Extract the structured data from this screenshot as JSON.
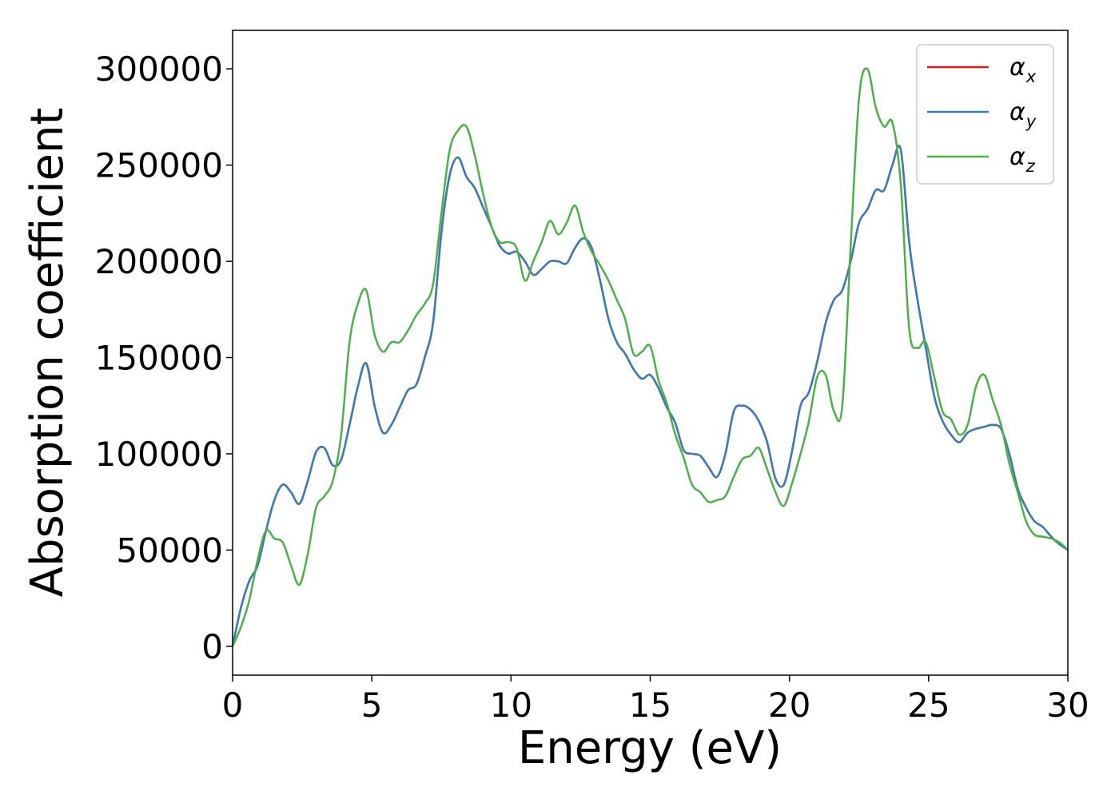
{
  "chart_data": {
    "type": "line",
    "xlabel": "Energy (eV)",
    "ylabel": "Absorption coefficient",
    "xlim": [
      0,
      30
    ],
    "ylim": [
      -15000,
      320000
    ],
    "xticks": [
      0,
      5,
      10,
      15,
      20,
      25,
      30
    ],
    "yticks": [
      0,
      50000,
      100000,
      150000,
      200000,
      250000,
      300000
    ],
    "grid": false,
    "legend_position": "top-right",
    "series": [
      {
        "name": "α_x",
        "legend_base": "α",
        "legend_sub": "x",
        "color": "#e41a1c",
        "x": [
          0,
          0.3,
          0.6,
          0.9,
          1.2,
          1.5,
          1.8,
          2.1,
          2.4,
          2.7,
          3.0,
          3.3,
          3.6,
          3.9,
          4.2,
          4.5,
          4.8,
          5.1,
          5.4,
          5.7,
          6.0,
          6.3,
          6.6,
          6.9,
          7.2,
          7.5,
          7.8,
          8.1,
          8.4,
          8.7,
          9.0,
          9.3,
          9.6,
          9.9,
          10.2,
          10.5,
          10.8,
          11.1,
          11.4,
          11.7,
          12.0,
          12.3,
          12.6,
          12.9,
          13.2,
          13.5,
          13.8,
          14.1,
          14.4,
          14.7,
          15.0,
          15.3,
          15.6,
          15.9,
          16.2,
          16.5,
          16.8,
          17.1,
          17.4,
          17.7,
          18.0,
          18.3,
          18.6,
          18.9,
          19.2,
          19.5,
          19.8,
          20.1,
          20.4,
          20.7,
          21.0,
          21.3,
          21.6,
          21.9,
          22.2,
          22.5,
          22.8,
          23.1,
          23.4,
          23.7,
          24.0,
          24.3,
          24.6,
          24.9,
          25.2,
          25.5,
          25.8,
          26.1,
          26.4,
          26.7,
          27.0,
          27.3,
          27.6,
          27.9,
          28.2,
          28.5,
          28.8,
          29.1,
          29.4,
          29.7,
          30.0
        ],
        "y": [
          0,
          20000,
          34000,
          42000,
          60000,
          76000,
          84000,
          80000,
          74000,
          86000,
          101000,
          103000,
          94000,
          97000,
          115000,
          135000,
          147000,
          125000,
          111000,
          115000,
          124000,
          133000,
          136000,
          150000,
          168000,
          215000,
          245000,
          254000,
          244000,
          238000,
          228000,
          218000,
          208000,
          204000,
          205000,
          200000,
          193000,
          196000,
          200000,
          200000,
          199000,
          207000,
          212000,
          207000,
          190000,
          170000,
          158000,
          152000,
          144000,
          139000,
          141000,
          134000,
          124000,
          116000,
          102000,
          100000,
          99000,
          93000,
          88000,
          100000,
          122000,
          125000,
          123000,
          117000,
          106000,
          87000,
          84000,
          102000,
          125000,
          132000,
          148000,
          168000,
          180000,
          185000,
          200000,
          220000,
          227000,
          237000,
          237000,
          250000,
          258000,
          210000,
          180000,
          155000,
          130000,
          117000,
          110000,
          106000,
          111000,
          113000,
          114000,
          115000,
          113000,
          100000,
          82000,
          72000,
          65000,
          62000,
          57000,
          53000,
          50000
        ]
      },
      {
        "name": "α_y",
        "legend_base": "α",
        "legend_sub": "y",
        "color": "#377eb8",
        "x": [
          0,
          0.3,
          0.6,
          0.9,
          1.2,
          1.5,
          1.8,
          2.1,
          2.4,
          2.7,
          3.0,
          3.3,
          3.6,
          3.9,
          4.2,
          4.5,
          4.8,
          5.1,
          5.4,
          5.7,
          6.0,
          6.3,
          6.6,
          6.9,
          7.2,
          7.5,
          7.8,
          8.1,
          8.4,
          8.7,
          9.0,
          9.3,
          9.6,
          9.9,
          10.2,
          10.5,
          10.8,
          11.1,
          11.4,
          11.7,
          12.0,
          12.3,
          12.6,
          12.9,
          13.2,
          13.5,
          13.8,
          14.1,
          14.4,
          14.7,
          15.0,
          15.3,
          15.6,
          15.9,
          16.2,
          16.5,
          16.8,
          17.1,
          17.4,
          17.7,
          18.0,
          18.3,
          18.6,
          18.9,
          19.2,
          19.5,
          19.8,
          20.1,
          20.4,
          20.7,
          21.0,
          21.3,
          21.6,
          21.9,
          22.2,
          22.5,
          22.8,
          23.1,
          23.4,
          23.7,
          24.0,
          24.3,
          24.6,
          24.9,
          25.2,
          25.5,
          25.8,
          26.1,
          26.4,
          26.7,
          27.0,
          27.3,
          27.6,
          27.9,
          28.2,
          28.5,
          28.8,
          29.1,
          29.4,
          29.7,
          30.0
        ],
        "y": [
          0,
          20000,
          34000,
          42000,
          60000,
          76000,
          84000,
          80000,
          74000,
          86000,
          101000,
          103000,
          94000,
          97000,
          115000,
          135000,
          147000,
          125000,
          111000,
          115000,
          124000,
          133000,
          136000,
          150000,
          168000,
          215000,
          245000,
          254000,
          244000,
          238000,
          228000,
          218000,
          208000,
          204000,
          205000,
          200000,
          193000,
          196000,
          200000,
          200000,
          199000,
          207000,
          212000,
          207000,
          190000,
          170000,
          158000,
          152000,
          144000,
          139000,
          141000,
          134000,
          124000,
          116000,
          102000,
          100000,
          99000,
          93000,
          88000,
          100000,
          122000,
          125000,
          123000,
          117000,
          106000,
          87000,
          84000,
          102000,
          125000,
          132000,
          148000,
          168000,
          180000,
          185000,
          200000,
          220000,
          227000,
          237000,
          237000,
          250000,
          258000,
          210000,
          180000,
          155000,
          130000,
          117000,
          110000,
          106000,
          111000,
          113000,
          114000,
          115000,
          113000,
          100000,
          82000,
          72000,
          65000,
          62000,
          57000,
          53000,
          50000
        ]
      },
      {
        "name": "α_z",
        "legend_base": "α",
        "legend_sub": "z",
        "color": "#4daf4a",
        "x": [
          0,
          0.3,
          0.6,
          0.9,
          1.2,
          1.5,
          1.8,
          2.1,
          2.4,
          2.7,
          3.0,
          3.3,
          3.6,
          3.9,
          4.2,
          4.5,
          4.8,
          5.1,
          5.4,
          5.7,
          6.0,
          6.3,
          6.6,
          6.9,
          7.2,
          7.5,
          7.8,
          8.1,
          8.4,
          8.7,
          9.0,
          9.3,
          9.6,
          9.9,
          10.2,
          10.5,
          10.8,
          11.1,
          11.4,
          11.7,
          12.0,
          12.3,
          12.6,
          12.9,
          13.2,
          13.5,
          13.8,
          14.1,
          14.4,
          14.7,
          15.0,
          15.3,
          15.6,
          15.9,
          16.2,
          16.5,
          16.8,
          17.1,
          17.4,
          17.7,
          18.0,
          18.3,
          18.6,
          18.9,
          19.2,
          19.5,
          19.8,
          20.1,
          20.4,
          20.7,
          21.0,
          21.3,
          21.6,
          21.9,
          22.2,
          22.5,
          22.8,
          23.1,
          23.4,
          23.7,
          24.0,
          24.3,
          24.6,
          24.9,
          25.2,
          25.5,
          25.8,
          26.1,
          26.4,
          26.7,
          27.0,
          27.3,
          27.6,
          27.9,
          28.2,
          28.5,
          28.8,
          29.1,
          29.4,
          29.7,
          30.0
        ],
        "y": [
          0,
          10000,
          24000,
          45000,
          60000,
          56000,
          54000,
          42000,
          32000,
          48000,
          72000,
          78000,
          86000,
          110000,
          158000,
          178000,
          185000,
          162000,
          153000,
          158000,
          158000,
          164000,
          172000,
          178000,
          188000,
          225000,
          258000,
          268000,
          270000,
          255000,
          235000,
          218000,
          210000,
          210000,
          207000,
          190000,
          200000,
          210000,
          221000,
          214000,
          220000,
          229000,
          215000,
          205000,
          198000,
          190000,
          180000,
          170000,
          152000,
          153000,
          156000,
          138000,
          126000,
          110000,
          98000,
          84000,
          80000,
          75000,
          76000,
          78000,
          88000,
          97000,
          99000,
          103000,
          92000,
          80000,
          73000,
          85000,
          100000,
          117000,
          140000,
          141000,
          122000,
          125000,
          208000,
          285000,
          300000,
          280000,
          270000,
          272000,
          240000,
          165000,
          155000,
          158000,
          140000,
          122000,
          118000,
          110000,
          115000,
          135000,
          141000,
          128000,
          115000,
          95000,
          80000,
          65000,
          58000,
          57000,
          56000,
          54000,
          50000
        ]
      }
    ]
  }
}
